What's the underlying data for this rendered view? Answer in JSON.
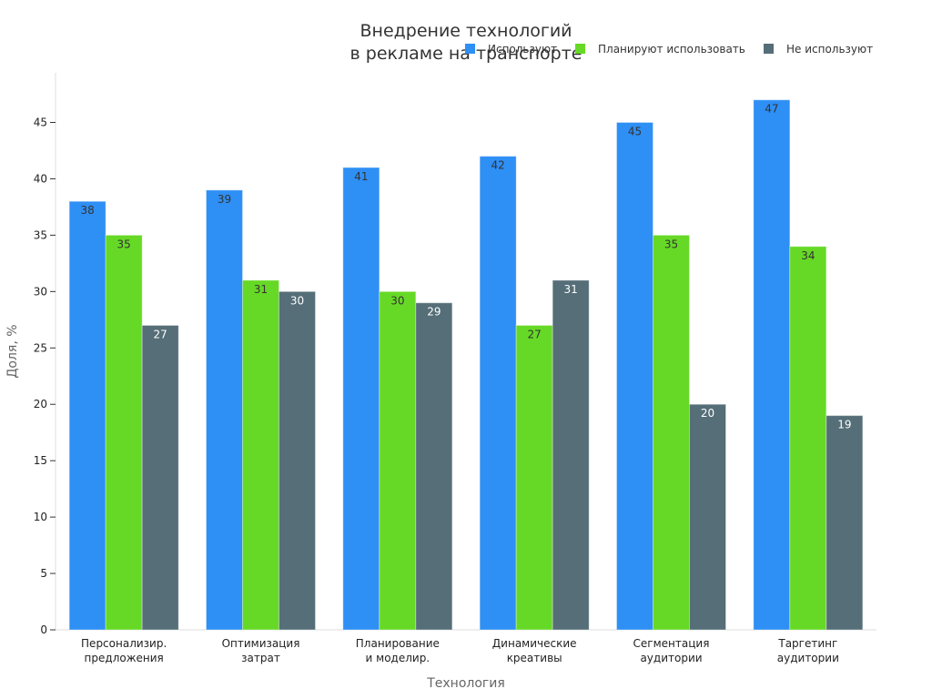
{
  "chart_data": {
    "type": "bar",
    "title_lines": [
      "Внедрение технологий",
      "в рекламе на транспорте"
    ],
    "xlabel": "Технология",
    "ylabel": "Доля, %",
    "categories": [
      [
        "Персонализир.",
        "предложения"
      ],
      [
        "Оптимизация",
        "затрат"
      ],
      [
        "Планирование",
        "и моделир."
      ],
      [
        "Динамические",
        "креативы"
      ],
      [
        "Сегментация",
        "аудитории"
      ],
      [
        "Таргетинг",
        "аудитории"
      ]
    ],
    "series": [
      {
        "name": "Используют",
        "color": "#2e8ff5",
        "label_color": "#333333",
        "values": [
          38,
          39,
          41,
          42,
          45,
          47
        ]
      },
      {
        "name": "Планируют использовать",
        "color": "#66d926",
        "label_color": "#333333",
        "values": [
          35,
          31,
          30,
          27,
          35,
          34
        ]
      },
      {
        "name": "Не используют",
        "color": "#556e78",
        "label_color": "#ffffff",
        "values": [
          27,
          30,
          29,
          31,
          20,
          19
        ]
      }
    ],
    "ylim": [
      0,
      49.4
    ],
    "yticks": [
      0,
      5,
      10,
      15,
      20,
      25,
      30,
      35,
      40,
      45
    ],
    "grid": false,
    "legend_position": "top-right"
  }
}
